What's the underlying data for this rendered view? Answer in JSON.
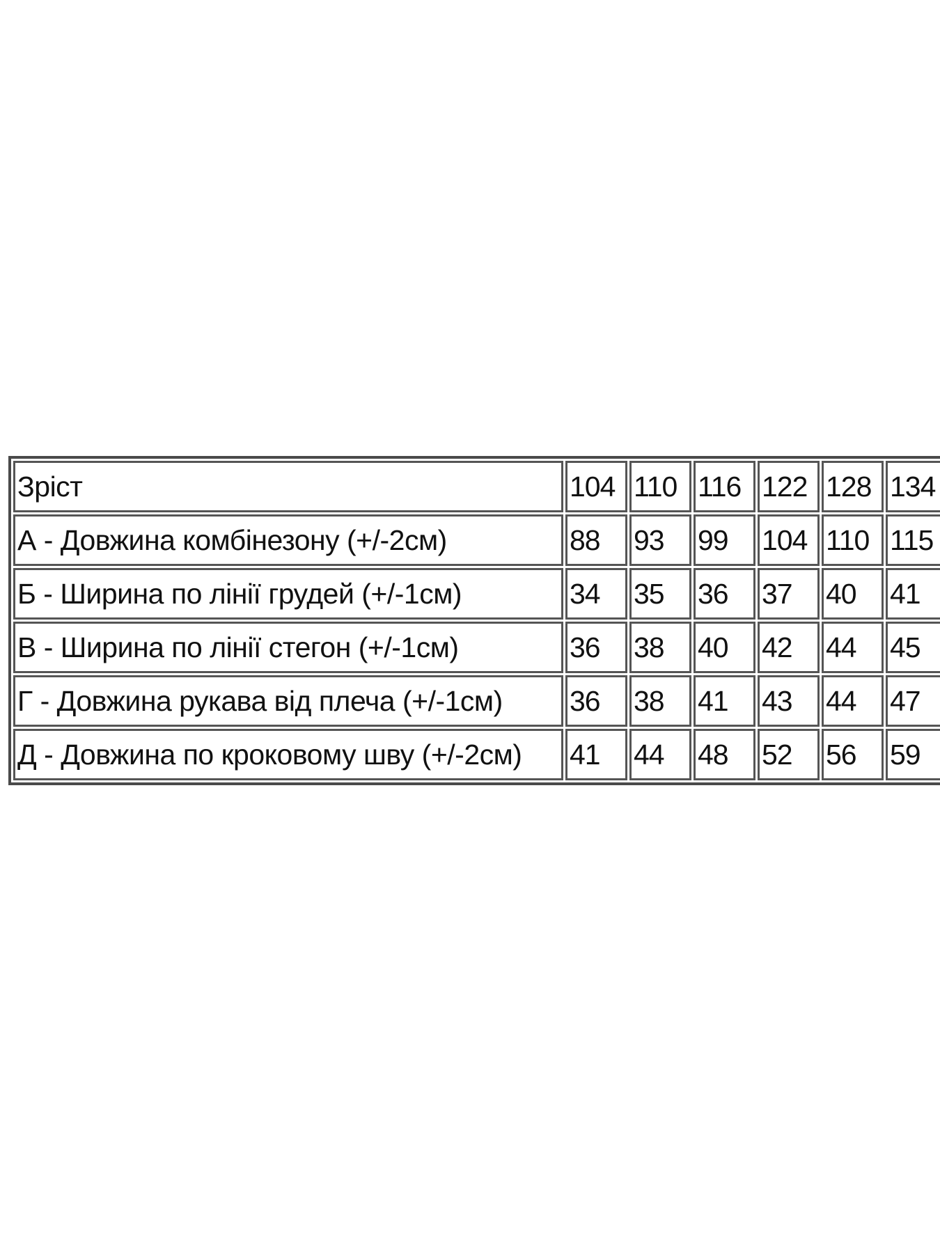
{
  "table": {
    "header": {
      "label": "Зріст",
      "sizes": [
        "104",
        "110",
        "116",
        "122",
        "128",
        "134"
      ]
    },
    "rows": [
      {
        "label": "А - Довжина комбінезону (+/-2см)",
        "values": [
          "88",
          "93",
          "99",
          "104",
          "110",
          "115"
        ]
      },
      {
        "label": "Б - Ширина по лінії грудей (+/-1см)",
        "values": [
          "34",
          "35",
          "36",
          "37",
          "40",
          "41"
        ]
      },
      {
        "label": "В - Ширина по лінії стегон (+/-1см)",
        "values": [
          "36",
          "38",
          "40",
          "42",
          "44",
          "45"
        ]
      },
      {
        "label": "Г - Довжина рукава від плеча (+/-1см)",
        "values": [
          "36",
          "38",
          "41",
          "43",
          "44",
          "47"
        ]
      },
      {
        "label": "Д - Довжина по кроковому шву (+/-2см)",
        "values": [
          "41",
          "44",
          "48",
          "52",
          "56",
          "59"
        ]
      }
    ]
  }
}
